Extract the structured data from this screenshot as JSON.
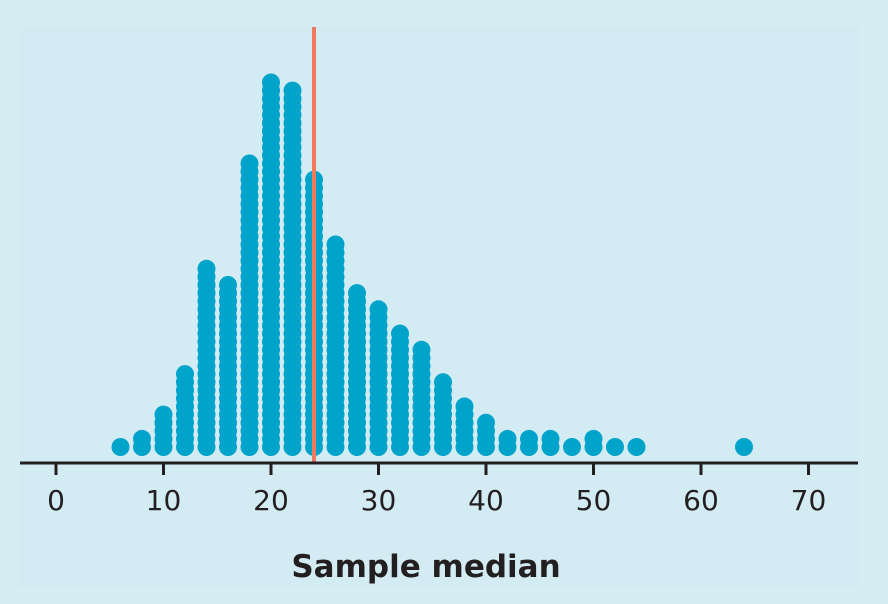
{
  "chart_data": {
    "type": "scatter",
    "subtype": "dot-histogram",
    "title": "",
    "xlabel": "Sample median",
    "ylabel": "",
    "xlim": [
      -3,
      75
    ],
    "xticks": [
      0,
      10,
      20,
      30,
      40,
      50,
      60,
      70
    ],
    "grid": false,
    "legend": "none",
    "bin_width": 2,
    "series": [
      {
        "bins": [
          {
            "x": 6,
            "count": 1
          },
          {
            "x": 8,
            "count": 2
          },
          {
            "x": 10,
            "count": 5
          },
          {
            "x": 12,
            "count": 10
          },
          {
            "x": 14,
            "count": 23
          },
          {
            "x": 16,
            "count": 21
          },
          {
            "x": 18,
            "count": 36
          },
          {
            "x": 20,
            "count": 46
          },
          {
            "x": 22,
            "count": 45
          },
          {
            "x": 24,
            "count": 34
          },
          {
            "x": 26,
            "count": 26
          },
          {
            "x": 28,
            "count": 20
          },
          {
            "x": 30,
            "count": 18
          },
          {
            "x": 32,
            "count": 15
          },
          {
            "x": 34,
            "count": 13
          },
          {
            "x": 36,
            "count": 9
          },
          {
            "x": 38,
            "count": 6
          },
          {
            "x": 40,
            "count": 4
          },
          {
            "x": 42,
            "count": 2
          },
          {
            "x": 44,
            "count": 2
          },
          {
            "x": 46,
            "count": 2
          },
          {
            "x": 48,
            "count": 1
          },
          {
            "x": 50,
            "count": 2
          },
          {
            "x": 52,
            "count": 1
          },
          {
            "x": 54,
            "count": 1
          },
          {
            "x": 64,
            "count": 1
          }
        ]
      }
    ],
    "reference_line": {
      "x": 24
    },
    "colors": {
      "dots": "#00a3c9",
      "reference_line": "#ef7a5c",
      "axis": "#231f20",
      "panel": "#d3ecf4",
      "page": "#d6eef3"
    }
  }
}
